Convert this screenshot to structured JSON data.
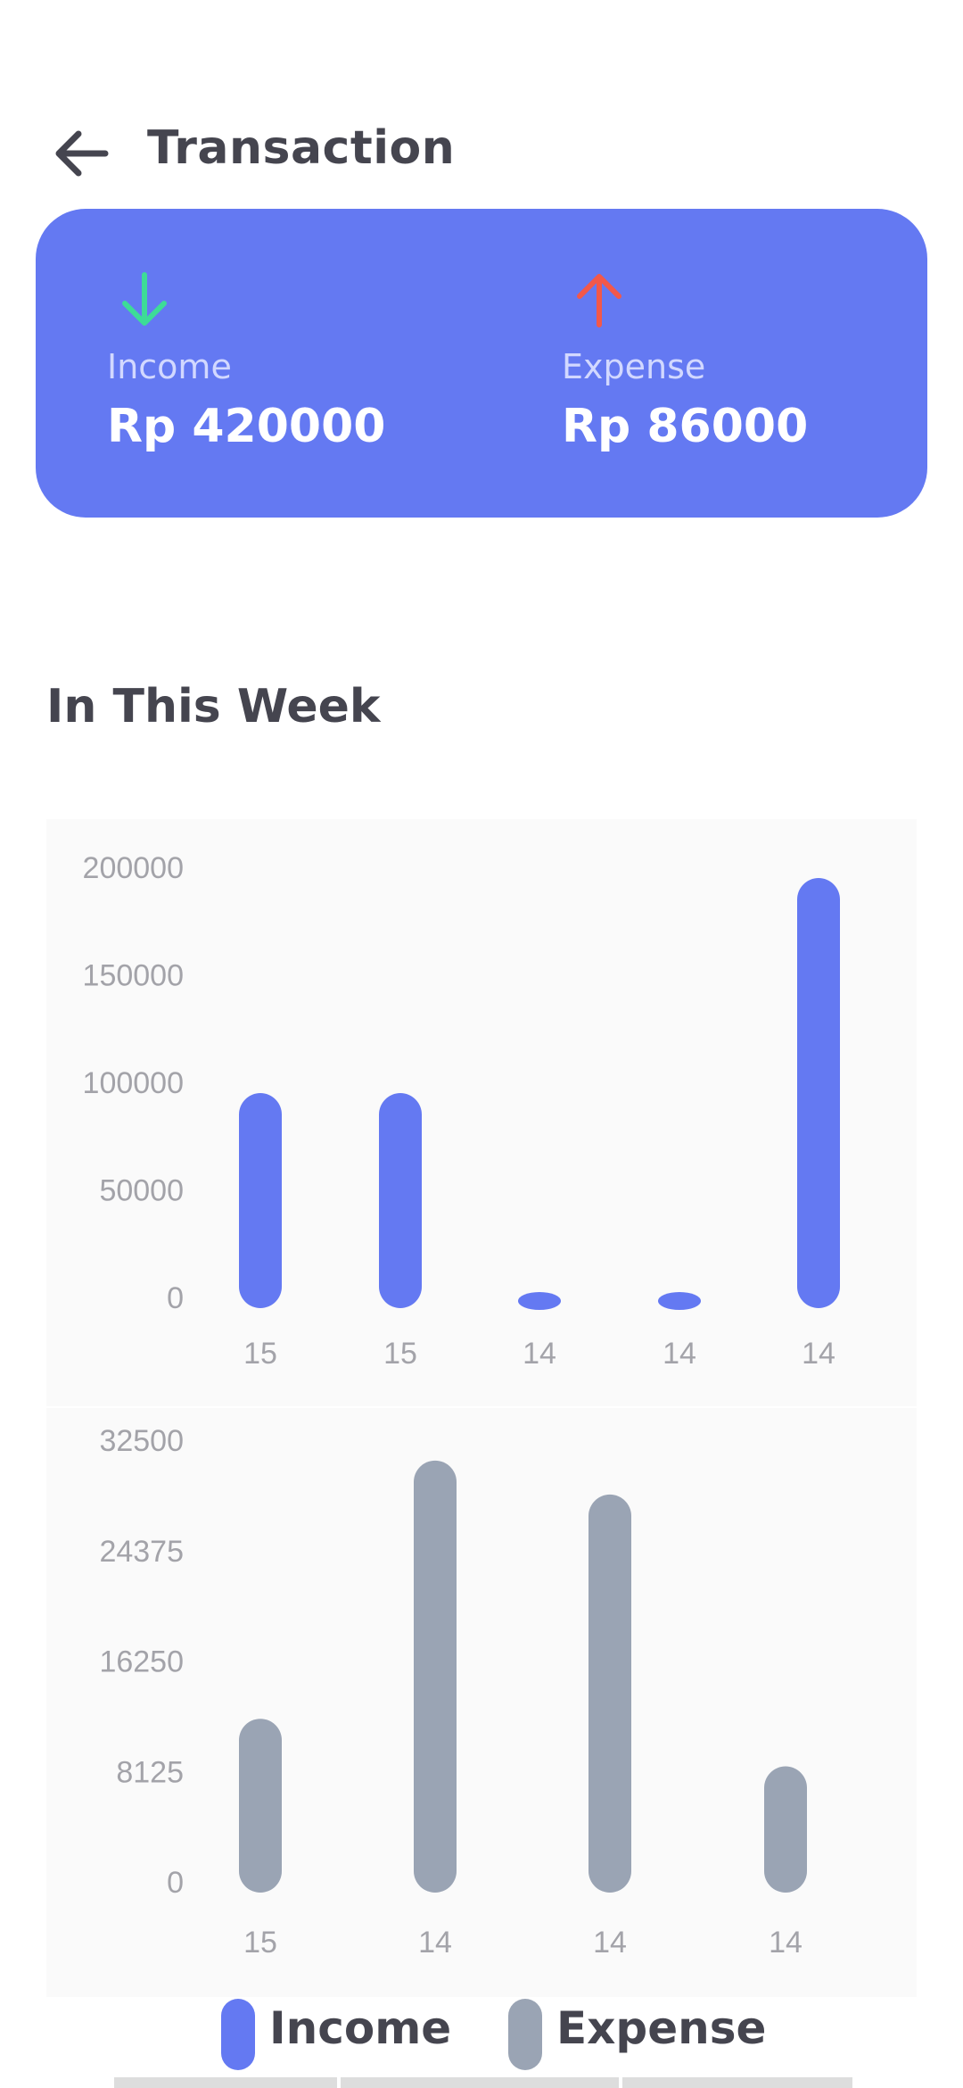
{
  "header": {
    "title": "Transaction",
    "back_icon": "arrow-left-icon"
  },
  "summary": {
    "income": {
      "label": "Income",
      "value": "Rp 420000",
      "icon": "arrow-down-icon",
      "icon_color": "#3ddc97"
    },
    "expense": {
      "label": "Expense",
      "value": "Rp 86000",
      "icon": "arrow-up-icon",
      "icon_color": "#f2584a"
    },
    "card_color": "#6479f2"
  },
  "section": {
    "title": "In This Week"
  },
  "chart_data": [
    {
      "type": "bar",
      "categories": [
        "15",
        "15",
        "14",
        "14",
        "14"
      ],
      "values": [
        95000,
        95000,
        1000,
        1000,
        195000
      ],
      "yticks": [
        "200000",
        "150000",
        "100000",
        "50000",
        "0"
      ],
      "ylim": [
        0,
        200000
      ],
      "color": "#6479f2",
      "grid": false
    },
    {
      "type": "bar",
      "categories": [
        "15",
        "14",
        "14",
        "14"
      ],
      "values": [
        12000,
        31000,
        28500,
        8500
      ],
      "yticks": [
        "32500",
        "24375",
        "16250",
        "8125",
        "0"
      ],
      "ylim": [
        0,
        32500
      ],
      "color": "#9aa4b4",
      "grid": false
    }
  ],
  "legend": {
    "items": [
      {
        "label": "Income",
        "color": "#6479f2"
      },
      {
        "label": "Expense",
        "color": "#9aa4b4"
      }
    ]
  }
}
